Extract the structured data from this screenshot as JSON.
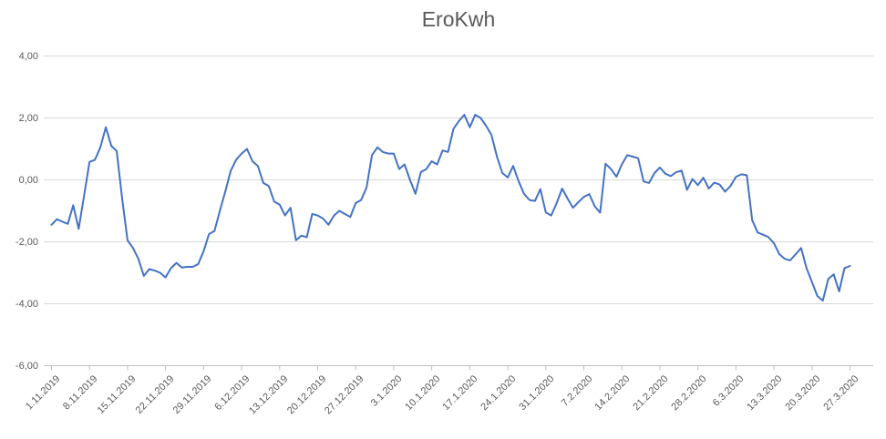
{
  "title": "EroKwh",
  "colors": {
    "line": "#4472C4",
    "gridline": "#D9D9D9",
    "axis_line": "#BFBFBF",
    "text": "#595959",
    "background": "#FFFFFF"
  },
  "chart_data": {
    "type": "line",
    "title": "EroKwh",
    "legend": "none",
    "grid": "horizontal",
    "ylim": [
      -6,
      4
    ],
    "y_tick_step": 2,
    "y_tick_labels": [
      "4,00",
      "2,00",
      "0,00",
      "-2,00",
      "-4,00",
      "-6,00"
    ],
    "x_labels": [
      "1.11.2019",
      "8.11.2019",
      "15.11.2019",
      "22.11.2019",
      "29.11.2019",
      "6.12.2019",
      "13.12.2019",
      "20.12.2019",
      "27.12.2019",
      "3.1.2020",
      "10.1.2020",
      "17.1.2020",
      "24.1.2020",
      "31.1.2020",
      "7.2.2020",
      "14.2.2020",
      "21.2.2020",
      "28.2.2020",
      "6.3.2020",
      "13.3.2020",
      "20.3.2020",
      "27.3.2020"
    ],
    "points_per_label": 7,
    "values": [
      -1.45,
      -1.27,
      -1.35,
      -1.42,
      -0.82,
      -1.58,
      -0.5,
      0.58,
      0.65,
      1.05,
      1.7,
      1.1,
      0.93,
      -0.6,
      -1.95,
      -2.2,
      -2.55,
      -3.1,
      -2.88,
      -2.93,
      -3.0,
      -3.15,
      -2.85,
      -2.68,
      -2.83,
      -2.81,
      -2.81,
      -2.72,
      -2.3,
      -1.75,
      -1.65,
      -1.0,
      -0.37,
      0.3,
      0.65,
      0.85,
      1.0,
      0.6,
      0.45,
      -0.1,
      -0.2,
      -0.7,
      -0.8,
      -1.15,
      -0.9,
      -1.95,
      -1.8,
      -1.85,
      -1.1,
      -1.15,
      -1.25,
      -1.45,
      -1.15,
      -1.0,
      -1.1,
      -1.2,
      -0.75,
      -0.65,
      -0.25,
      0.8,
      1.05,
      0.9,
      0.85,
      0.85,
      0.35,
      0.5,
      0.0,
      -0.45,
      0.25,
      0.35,
      0.6,
      0.5,
      0.95,
      0.9,
      1.65,
      1.9,
      2.1,
      1.7,
      2.1,
      2.0,
      1.75,
      1.45,
      0.75,
      0.22,
      0.08,
      0.45,
      -0.05,
      -0.45,
      -0.65,
      -0.68,
      -0.3,
      -1.05,
      -1.15,
      -0.75,
      -0.28,
      -0.6,
      -0.9,
      -0.72,
      -0.55,
      -0.46,
      -0.85,
      -1.06,
      0.52,
      0.35,
      0.1,
      0.5,
      0.8,
      0.75,
      0.7,
      -0.05,
      -0.1,
      0.22,
      0.4,
      0.2,
      0.12,
      0.25,
      0.3,
      -0.32,
      0.03,
      -0.17,
      0.07,
      -0.28,
      -0.09,
      -0.15,
      -0.38,
      -0.2,
      0.1,
      0.18,
      0.15,
      -1.3,
      -1.7,
      -1.77,
      -1.85,
      -2.05,
      -2.4,
      -2.55,
      -2.6,
      -2.4,
      -2.2,
      -2.85,
      -3.3,
      -3.75,
      -3.9,
      -3.2,
      -3.05,
      -3.6,
      -2.85,
      -2.78
    ]
  }
}
